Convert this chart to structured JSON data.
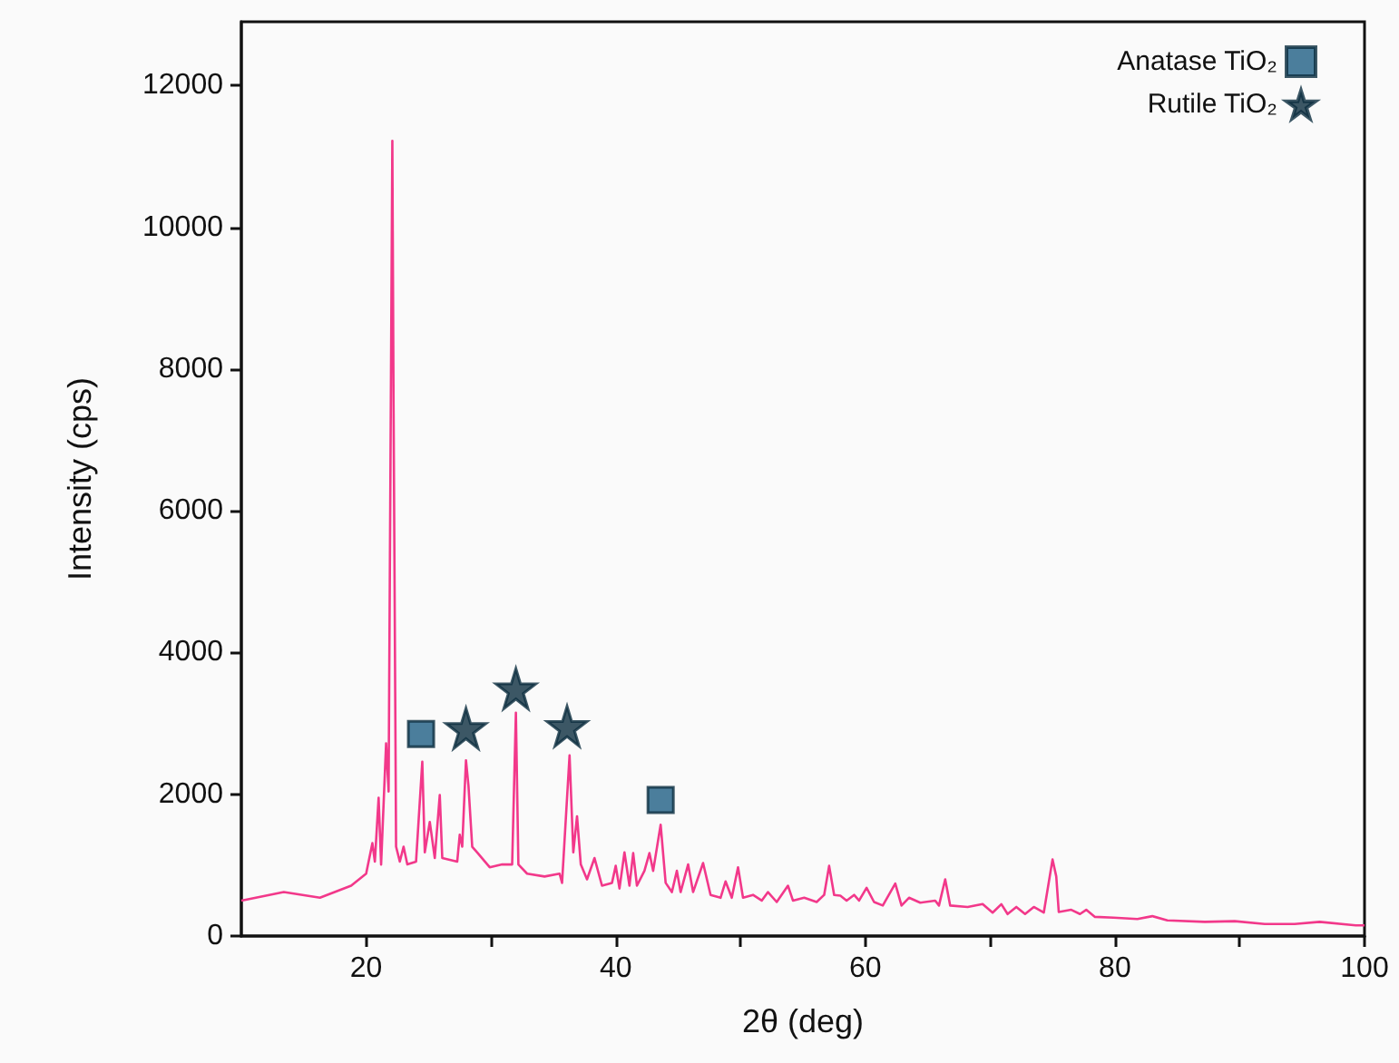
{
  "chart_data": {
    "type": "line",
    "xlabel": "2θ (deg)",
    "ylabel": "Intensity (cps)",
    "xlim": [
      10,
      100
    ],
    "ylim": [
      0,
      12900
    ],
    "xticks": [
      20,
      {
        "value": 30,
        "label": null
      },
      40,
      {
        "value": 50,
        "label": null
      },
      60,
      {
        "value": 70,
        "label": null
      },
      80,
      {
        "value": 90,
        "label": null
      },
      100
    ],
    "yticks": [
      0,
      2000,
      4000,
      6000,
      8000,
      10000,
      12000
    ],
    "grid": false,
    "legend": "top right",
    "series": [
      {
        "type": "line",
        "color": "#f2388a",
        "marker": "none",
        "x": [
          10,
          13.4,
          16.3,
          18.8,
          20.0,
          20.5,
          20.7,
          21.0,
          21.2,
          21.6,
          21.8,
          22.1,
          22.2,
          22.4,
          22.7,
          23.0,
          23.3,
          24.0,
          24.5,
          24.7,
          25.1,
          25.5,
          25.9,
          26.1,
          27.3,
          27.5,
          27.7,
          28.0,
          28.2,
          28.5,
          28.9,
          29.9,
          30.9,
          31.7,
          32.0,
          32.2,
          32.9,
          34.3,
          35.5,
          35.7,
          36.3,
          36.6,
          36.9,
          37.2,
          37.7,
          38.3,
          38.9,
          39.7,
          40.0,
          40.3,
          40.7,
          41.1,
          41.4,
          41.7,
          42.3,
          42.7,
          43.0,
          43.6,
          44.0,
          44.5,
          44.9,
          45.2,
          45.8,
          46.2,
          47.0,
          47.6,
          48.4,
          48.8,
          49.3,
          49.8,
          50.2,
          51.0,
          51.7,
          52.2,
          52.9,
          53.8,
          54.2,
          55.1,
          56.1,
          56.7,
          57.1,
          57.5,
          58.0,
          58.5,
          59.1,
          59.5,
          60.1,
          60.7,
          61.4,
          62.4,
          62.9,
          63.5,
          64.4,
          65.6,
          65.9,
          66.4,
          66.8,
          68.2,
          69.4,
          70.2,
          70.9,
          71.4,
          72.1,
          72.8,
          73.5,
          74.3,
          75.0,
          75.3,
          75.5,
          76.5,
          77.2,
          77.7,
          78.4,
          79.9,
          81.8,
          83.0,
          84.2,
          87.2,
          89.6,
          92.0,
          94.4,
          96.4,
          99.3,
          100
        ],
        "values": [
          500,
          620,
          540,
          710,
          880,
          1310,
          1050,
          1950,
          1010,
          2720,
          2040,
          11220,
          7420,
          1260,
          1050,
          1260,
          1010,
          1050,
          2460,
          1180,
          1610,
          1100,
          1990,
          1100,
          1050,
          1430,
          1260,
          2480,
          2120,
          1260,
          1180,
          970,
          1010,
          1010,
          3150,
          1010,
          880,
          840,
          880,
          750,
          2550,
          1180,
          1690,
          1010,
          800,
          1100,
          710,
          750,
          990,
          670,
          1180,
          710,
          1170,
          710,
          920,
          1170,
          920,
          1570,
          750,
          620,
          920,
          620,
          1010,
          620,
          1030,
          580,
          540,
          770,
          540,
          970,
          540,
          580,
          500,
          620,
          480,
          710,
          500,
          540,
          480,
          580,
          990,
          580,
          570,
          500,
          580,
          500,
          680,
          480,
          430,
          740,
          430,
          540,
          470,
          500,
          430,
          800,
          430,
          410,
          450,
          330,
          450,
          310,
          410,
          310,
          410,
          330,
          1080,
          840,
          340,
          370,
          310,
          370,
          270,
          260,
          240,
          280,
          220,
          200,
          210,
          170,
          170,
          200,
          150,
          150
        ]
      },
      {
        "type": "scatter",
        "name": "Anatase TiO₂",
        "color": "#1f5f85",
        "marker": "square",
        "x": [
          24.4,
          43.6
        ],
        "values": [
          2850,
          1920
        ]
      },
      {
        "type": "scatter",
        "name": "Rutile TiO₂",
        "color": "#0d2e40",
        "marker": "star",
        "x": [
          28.0,
          32.0,
          36.1
        ],
        "values": [
          2930,
          3490,
          2960
        ]
      }
    ]
  }
}
